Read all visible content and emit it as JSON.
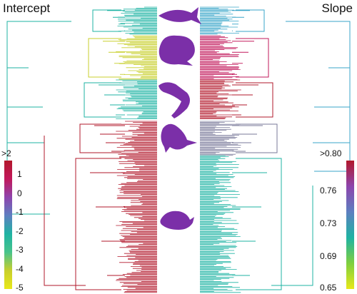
{
  "figure": {
    "left_title": "Intercept",
    "right_title": "Slope",
    "left_scale": {
      "ticks": [
        ">2",
        "1",
        "0",
        "-1",
        "-2",
        "-3",
        "-4",
        "-5"
      ],
      "colors": [
        "#b2182b",
        "#c2185b",
        "#8e44ad",
        "#5d7fc0",
        "#1fb3a3",
        "#48c38b",
        "#c8cf2c",
        "#e8e81a"
      ]
    },
    "right_scale": {
      "ticks": [
        ">0.80",
        "0.76",
        "0.73",
        "0.69",
        "0.65"
      ],
      "colors": [
        "#b2182b",
        "#8e44ad",
        "#5d7fc0",
        "#1fb3a3",
        "#7fcf3f",
        "#e8e81a"
      ]
    },
    "clades": [
      {
        "name": "fish",
        "icon": "fish-icon",
        "left_color": "#1fb3a3",
        "right_color": "#3aa6c9"
      },
      {
        "name": "amphibians",
        "icon": "frog-icon",
        "left_color": "#c8cf2c",
        "right_color": "#c2185b"
      },
      {
        "name": "reptiles",
        "icon": "lizard-icon",
        "left_color": "#1fb3a3",
        "right_color": "#b2182b"
      },
      {
        "name": "birds",
        "icon": "bird-icon",
        "left_color": "#b2182b",
        "right_color": "#7a7a9a"
      },
      {
        "name": "mammals",
        "icon": "rodent-icon",
        "left_color": "#b2182b",
        "right_color": "#1fb3a3"
      }
    ],
    "icon_color": "#7b2fa8"
  }
}
